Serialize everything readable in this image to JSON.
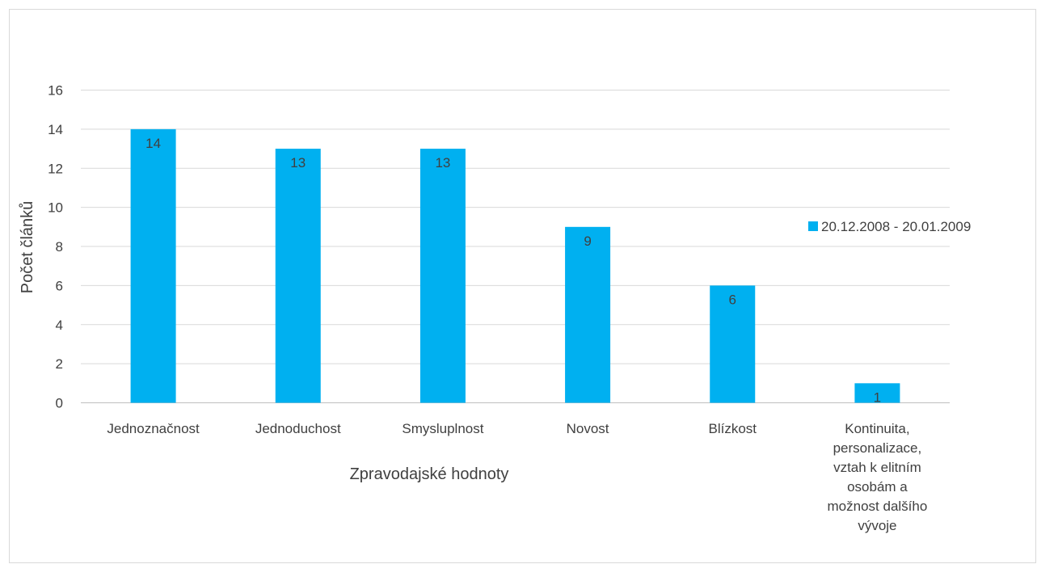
{
  "chart_data": {
    "type": "bar",
    "title": "",
    "xlabel": "Zpravodajské hodnoty",
    "ylabel": "Počet článků",
    "ylim": [
      0,
      16
    ],
    "ytick_step": 2,
    "grid": true,
    "legend_position": "right",
    "categories": [
      "Jednoznačnost",
      "Jednoduchost",
      "Smysluplnost",
      "Novost",
      "Blízkost",
      "Kontinuita, personalizace, vztah k elitním osobám a možnost dalšího vývoje"
    ],
    "category_lines": [
      [
        "Jednoznačnost"
      ],
      [
        "Jednoduchost"
      ],
      [
        "Smysluplnost"
      ],
      [
        "Novost"
      ],
      [
        "Blízkost"
      ],
      [
        "Kontinuita,",
        "personalizace,",
        "vztah k elitním",
        "osobám a",
        "možnost dalšího",
        "vývoje"
      ]
    ],
    "series": [
      {
        "name": "20.12.2008 - 20.01.2009",
        "color": "#00b0f0",
        "values": [
          14,
          13,
          13,
          9,
          6,
          1
        ]
      }
    ]
  }
}
